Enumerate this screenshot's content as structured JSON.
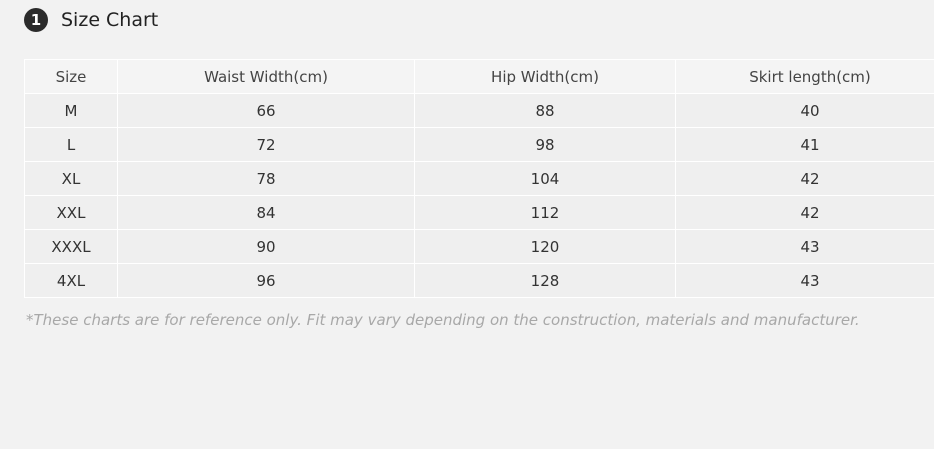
{
  "section": {
    "number": "1",
    "title": "Size Chart"
  },
  "table": {
    "headers": [
      "Size",
      "Waist Width(cm)",
      "Hip Width(cm)",
      "Skirt length(cm)"
    ],
    "rows": [
      [
        "M",
        "66",
        "88",
        "40"
      ],
      [
        "L",
        "72",
        "98",
        "41"
      ],
      [
        "XL",
        "78",
        "104",
        "42"
      ],
      [
        "XXL",
        "84",
        "112",
        "42"
      ],
      [
        "XXXL",
        "90",
        "120",
        "43"
      ],
      [
        "4XL",
        "96",
        "128",
        "43"
      ]
    ]
  },
  "footnote": "*These charts are for reference only. Fit may vary depending on the construction, materials and manufacturer."
}
